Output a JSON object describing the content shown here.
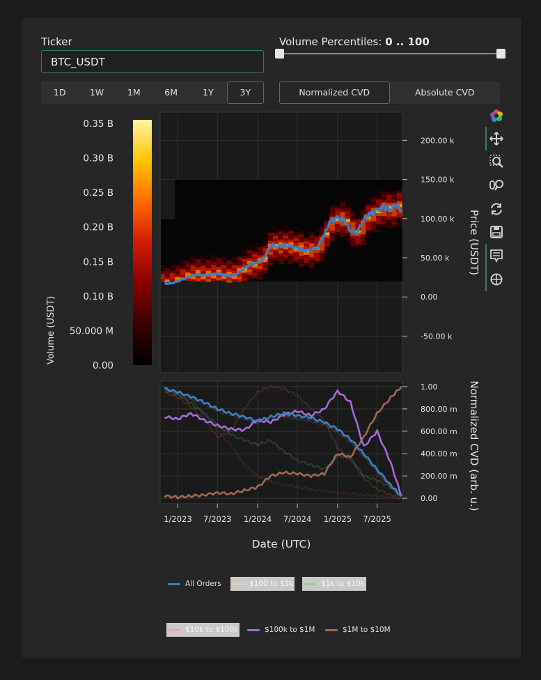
{
  "ticker": {
    "label": "Ticker",
    "value": "BTC_USDT"
  },
  "volume_percentiles": {
    "label": "Volume Percentiles:",
    "range_text": "0 .. 100",
    "low": 0,
    "high": 100
  },
  "time_ranges": [
    {
      "label": "1D",
      "active": false
    },
    {
      "label": "1W",
      "active": false
    },
    {
      "label": "1M",
      "active": false
    },
    {
      "label": "6M",
      "active": false
    },
    {
      "label": "1Y",
      "active": false
    },
    {
      "label": "3Y",
      "active": true
    }
  ],
  "cvd_modes": [
    {
      "label": "Normalized CVD",
      "active": true
    },
    {
      "label": "Absolute CVD",
      "active": false
    }
  ],
  "toolbar": [
    "logo-icon",
    "pan-icon",
    "box-zoom-icon",
    "wheel-zoom-icon",
    "reset-icon",
    "save-icon",
    "hover-icon",
    "crosshair-icon"
  ],
  "colors": {
    "accent": "#2f7d70",
    "price_line": "#3b7fc4",
    "panel_bg": "#262626",
    "plot_bg": "#1a1a1a"
  },
  "chart_data": [
    {
      "type": "colorbar",
      "ylabel": "Volume (USDT)",
      "ticks": [
        "0.00",
        "50.000 M",
        "0.10 B",
        "0.15 B",
        "0.20 B",
        "0.25 B",
        "0.30 B",
        "0.35 B"
      ],
      "tick_values": [
        0,
        50000000,
        100000000,
        150000000,
        200000000,
        250000000,
        300000000,
        350000000
      ],
      "range": [
        0,
        355000000
      ],
      "colormap": [
        "#000000",
        "#3a0000",
        "#8a0000",
        "#d41a00",
        "#ff6a00",
        "#ffc400",
        "#fff3a0"
      ]
    },
    {
      "type": "heatmap",
      "ylabel": "Price (USDT)",
      "x_range": [
        "2022-10-15",
        "2025-10-25"
      ],
      "ylim": [
        -95000,
        235000
      ],
      "yticks": [
        "-50.00 k",
        "0.00",
        "50.00 k",
        "100.00 k",
        "150.00 k",
        "200.00 k"
      ],
      "ytick_values": [
        -50000,
        0,
        50000,
        100000,
        150000,
        200000
      ],
      "grid": true,
      "series": [
        {
          "name": "price",
          "x": [
            "2022-11-01",
            "2022-12-01",
            "2023-01-01",
            "2023-02-01",
            "2023-03-01",
            "2023-04-01",
            "2023-05-01",
            "2023-06-01",
            "2023-07-01",
            "2023-08-01",
            "2023-09-01",
            "2023-10-01",
            "2023-11-01",
            "2023-12-01",
            "2024-01-01",
            "2024-02-01",
            "2024-03-01",
            "2024-04-01",
            "2024-05-01",
            "2024-06-01",
            "2024-07-01",
            "2024-08-01",
            "2024-09-01",
            "2024-10-01",
            "2024-11-01",
            "2024-12-01",
            "2025-01-01",
            "2025-02-01",
            "2025-03-01",
            "2025-04-01",
            "2025-05-01",
            "2025-06-01",
            "2025-07-01",
            "2025-08-01",
            "2025-09-01",
            "2025-10-01",
            "2025-10-20"
          ],
          "y": [
            17000,
            17000,
            20000,
            23500,
            27000,
            29000,
            27500,
            28000,
            30000,
            28000,
            26500,
            30000,
            36500,
            42000,
            43000,
            50000,
            67000,
            64000,
            66000,
            64000,
            62000,
            59000,
            60000,
            63000,
            80000,
            97000,
            100000,
            98000,
            85000,
            82000,
            100000,
            106000,
            110000,
            115000,
            111000,
            120000,
            108000
          ]
        }
      ]
    },
    {
      "type": "line",
      "ylabel": "Normalized CVD (arb. u.)",
      "xlabel": "Date (UTC)",
      "x_range": [
        "2022-10-15",
        "2025-10-25"
      ],
      "ylim": [
        -0.03,
        1.03
      ],
      "yticks": [
        "0.00",
        "200.00 m",
        "400.00 m",
        "600.00 m",
        "800.00 m",
        "1.00"
      ],
      "ytick_values": [
        0,
        0.2,
        0.4,
        0.6,
        0.8,
        1.0
      ],
      "xticks": [
        "1/2023",
        "7/2023",
        "1/2024",
        "7/2024",
        "1/2025",
        "7/2025"
      ],
      "xtick_values": [
        "2023-01-01",
        "2023-07-01",
        "2024-01-01",
        "2024-07-01",
        "2025-01-01",
        "2025-07-01"
      ],
      "x": [
        "2022-11-01",
        "2023-01-01",
        "2023-03-01",
        "2023-05-01",
        "2023-07-01",
        "2023-09-01",
        "2023-11-01",
        "2024-01-01",
        "2024-03-01",
        "2024-05-01",
        "2024-07-01",
        "2024-09-01",
        "2024-11-01",
        "2025-01-01",
        "2025-03-01",
        "2025-05-01",
        "2025-07-01",
        "2025-09-01",
        "2025-10-20"
      ],
      "series": [
        {
          "name": "All Orders",
          "color": "#3b7fc4",
          "width": 2.6,
          "opacity": 1,
          "visible": true,
          "values": [
            0.98,
            0.95,
            0.91,
            0.86,
            0.8,
            0.76,
            0.73,
            0.69,
            0.73,
            0.76,
            0.74,
            0.72,
            0.68,
            0.62,
            0.53,
            0.4,
            0.26,
            0.12,
            0.02
          ]
        },
        {
          "name": "$100 to $1k",
          "color": "#e9b08a",
          "width": 1.5,
          "opacity": 0.25,
          "visible": false,
          "values": [
            0.97,
            0.94,
            0.9,
            0.85,
            0.79,
            0.75,
            0.72,
            0.68,
            0.72,
            0.74,
            0.72,
            0.7,
            0.66,
            0.6,
            0.51,
            0.38,
            0.24,
            0.1,
            0.01
          ]
        },
        {
          "name": "$1k to $10k",
          "color": "#6fbf6f",
          "width": 2.2,
          "opacity": 0.35,
          "visible": false,
          "values": [
            0.99,
            0.93,
            0.85,
            0.76,
            0.66,
            0.57,
            0.52,
            0.48,
            0.52,
            0.42,
            0.34,
            0.3,
            0.26,
            0.38,
            0.36,
            0.2,
            0.16,
            0.1,
            0.02
          ]
        },
        {
          "name": "$10k to $100k",
          "color": "#f1a4a4",
          "width": 1.5,
          "opacity": 0.2,
          "visible": false,
          "values": [
            0.96,
            0.92,
            0.88,
            0.84,
            0.78,
            0.74,
            0.7,
            0.67,
            0.7,
            0.73,
            0.71,
            0.69,
            0.65,
            0.59,
            0.5,
            0.37,
            0.23,
            0.1,
            0.01
          ]
        },
        {
          "name": "$100k to $1M",
          "color": "#a56bd6",
          "width": 2.6,
          "opacity": 1,
          "visible": true,
          "values": [
            0.73,
            0.71,
            0.76,
            0.7,
            0.65,
            0.62,
            0.61,
            0.7,
            0.68,
            0.75,
            0.78,
            0.74,
            0.8,
            0.96,
            0.86,
            0.46,
            0.6,
            0.32,
            0.02
          ]
        },
        {
          "name": "$1M to $10M",
          "color": "#9b6a52",
          "width": 2.6,
          "opacity": 1,
          "visible": true,
          "values": [
            0.02,
            0.01,
            0.02,
            0.03,
            0.05,
            0.04,
            0.07,
            0.1,
            0.2,
            0.23,
            0.22,
            0.2,
            0.22,
            0.4,
            0.37,
            0.55,
            0.76,
            0.9,
            1.0
          ]
        },
        {
          "name": "shadow-1",
          "color": "#8a4a3a",
          "width": 2,
          "opacity": 0.35,
          "visible": true,
          "values": [
            0.95,
            0.9,
            0.82,
            0.7,
            0.55,
            0.6,
            0.8,
            0.95,
            1.0,
            0.98,
            0.92,
            0.8,
            0.7,
            0.45,
            0.35,
            0.18,
            0.08,
            0.03,
            0.01
          ]
        },
        {
          "name": "shadow-2",
          "color": "#7a3a30",
          "width": 2,
          "opacity": 0.3,
          "visible": true,
          "values": [
            0.98,
            0.96,
            0.9,
            0.75,
            0.6,
            0.48,
            0.3,
            0.2,
            0.15,
            0.12,
            0.1,
            0.08,
            0.06,
            0.05,
            0.04,
            0.03,
            0.02,
            0.01,
            0.0
          ]
        }
      ]
    }
  ],
  "legend": [
    {
      "label": "All Orders",
      "color": "#3b7fc4",
      "muted": false
    },
    {
      "label": "$100 to $1k",
      "color": "#e9b08a",
      "muted": true
    },
    {
      "label": "$1k to $10k",
      "color": "#8fd48f",
      "muted": true
    },
    {
      "label": "$10k to $100k",
      "color": "#f1a4a4",
      "muted": true
    },
    {
      "label": "$100k to $1M",
      "color": "#a56bd6",
      "muted": false
    },
    {
      "label": "$1M to $10M",
      "color": "#9b6a52",
      "muted": false
    }
  ]
}
